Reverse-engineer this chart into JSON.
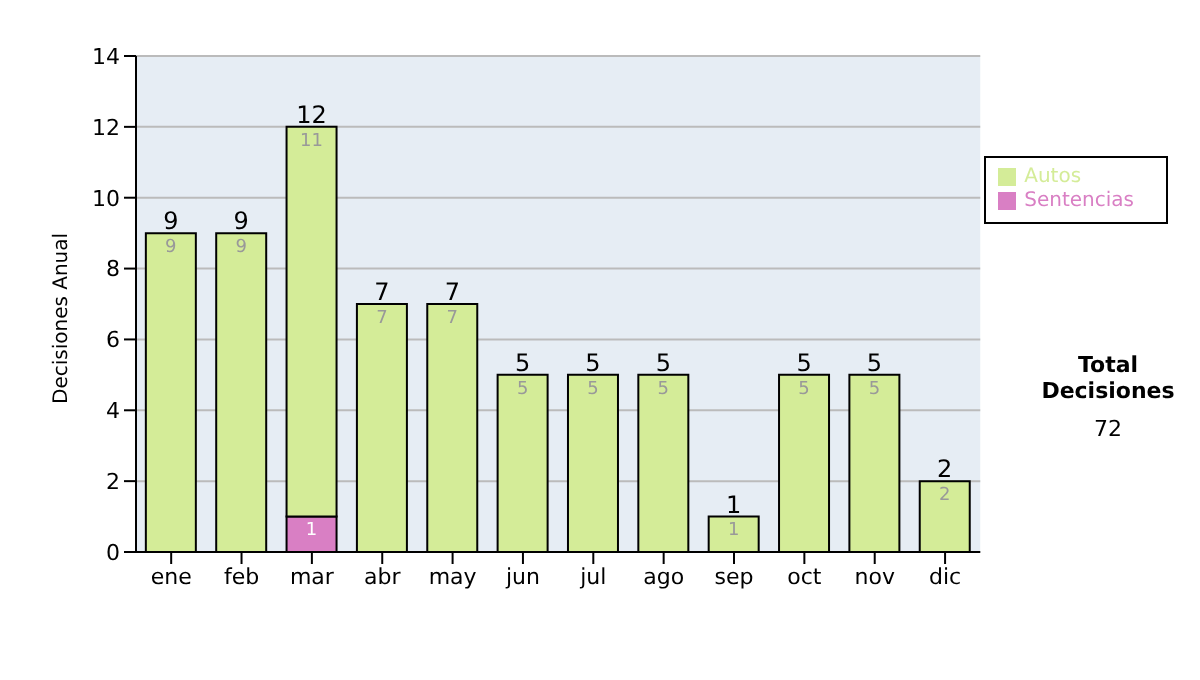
{
  "chart_data": {
    "type": "bar",
    "ylabel": "Decisiones Anual",
    "stacked": true,
    "categories": [
      "ene",
      "feb",
      "mar",
      "abr",
      "may",
      "jun",
      "jul",
      "ago",
      "sep",
      "oct",
      "nov",
      "dic"
    ],
    "series": [
      {
        "name": "Sentencias",
        "color": "#d97fc4",
        "values": [
          null,
          null,
          1,
          null,
          null,
          null,
          null,
          null,
          null,
          null,
          null,
          null
        ],
        "value_labels": [
          null,
          null,
          "1",
          null,
          null,
          null,
          null,
          null,
          null,
          null,
          null,
          null
        ]
      },
      {
        "name": "Autos",
        "color": "#d4ec98",
        "values": [
          9,
          9,
          11,
          7,
          7,
          5,
          5,
          5,
          1,
          5,
          5,
          2
        ],
        "value_labels": [
          "9",
          "9",
          "11",
          "7",
          "7",
          "5",
          "5",
          "5",
          "1",
          "5",
          "5",
          "2"
        ]
      }
    ],
    "totals": [
      "9",
      "9",
      "12",
      "7",
      "7",
      "5",
      "5",
      "5",
      "1",
      "5",
      "5",
      "2"
    ],
    "ylim": [
      0,
      14
    ],
    "yticks": [
      0,
      2,
      4,
      6,
      8,
      10,
      12,
      14
    ],
    "grid": "y",
    "legend": "right",
    "annotations": [
      "Total Decisiones",
      "72"
    ]
  }
}
